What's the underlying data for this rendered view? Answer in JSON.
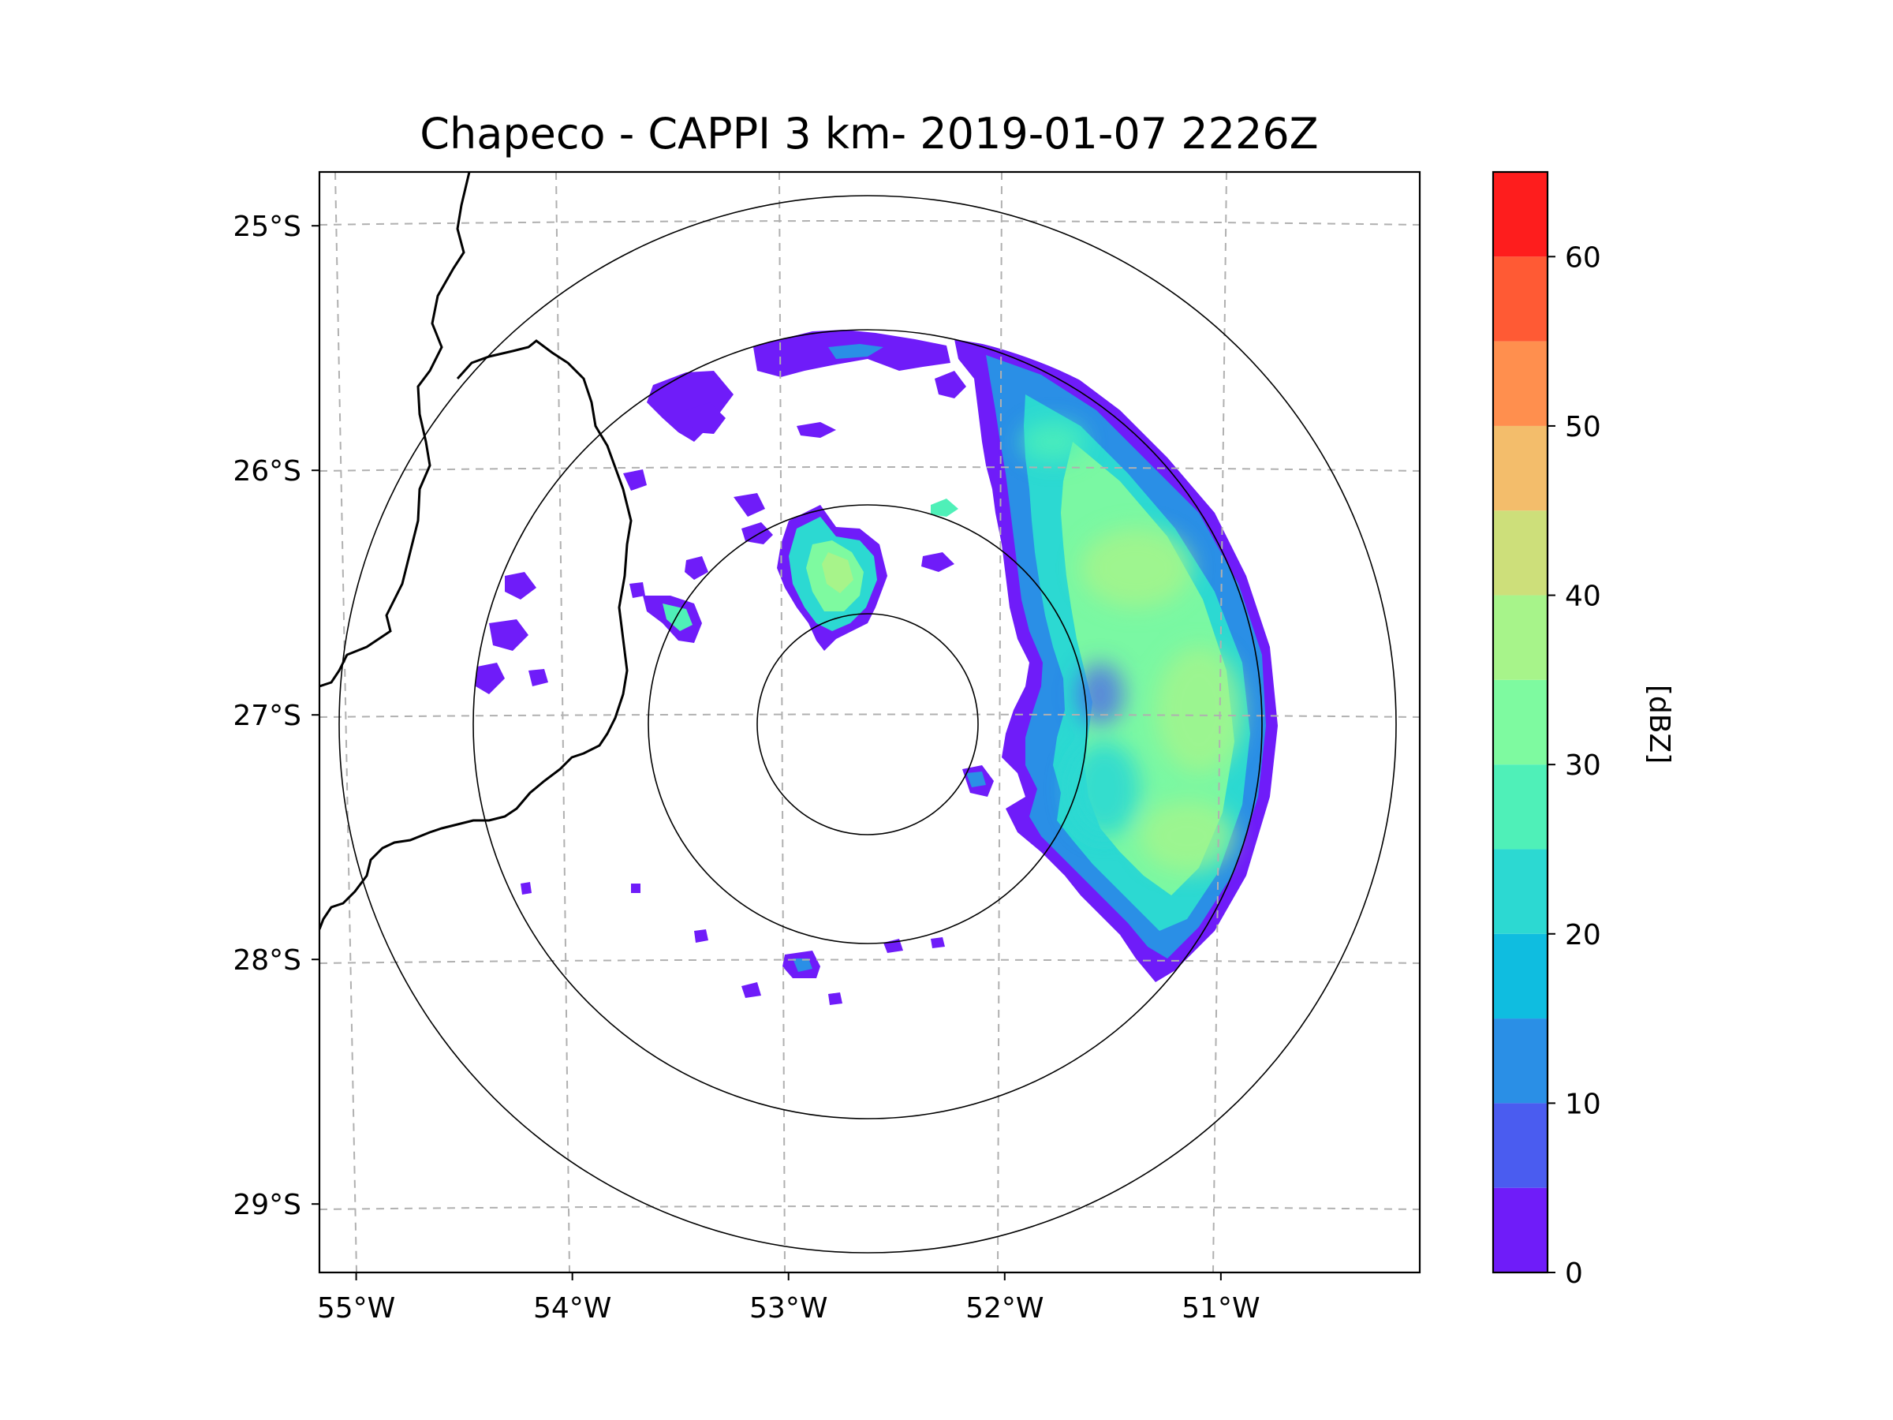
{
  "chart_data": {
    "type": "heatmap",
    "title": "Chapeco - CAPPI 3 km- 2019-01-07 2226Z",
    "map": {
      "projection": "azimuthal-equidistant",
      "radar_site": {
        "lon": -52.6,
        "lat": -27.03
      },
      "range_rings": [
        "ring-1",
        "ring-2",
        "ring-3",
        "ring-4"
      ],
      "gridlines": "dashed",
      "x_ticks": [
        {
          "value": -55,
          "label": "55°W"
        },
        {
          "value": -54,
          "label": "54°W"
        },
        {
          "value": -53,
          "label": "53°W"
        },
        {
          "value": -52,
          "label": "52°W"
        },
        {
          "value": -51,
          "label": "51°W"
        }
      ],
      "y_ticks": [
        {
          "value": -25,
          "label": "25°S"
        },
        {
          "value": -26,
          "label": "26°S"
        },
        {
          "value": -27,
          "label": "27°S"
        },
        {
          "value": -28,
          "label": "28°S"
        },
        {
          "value": -29,
          "label": "29°S"
        }
      ],
      "xlim": [
        -55.17,
        -50.08
      ],
      "ylim": [
        -29.28,
        -24.78
      ]
    },
    "colorbar": {
      "label": "[dBZ]",
      "range": [
        0,
        65
      ],
      "levels": [
        0,
        5,
        10,
        15,
        20,
        25,
        30,
        35,
        40,
        45,
        50,
        55,
        60,
        65
      ],
      "colors": [
        "#6f1cf9",
        "#4a5cf0",
        "#2a8fe6",
        "#0fbde0",
        "#2cd9d2",
        "#4ff0b8",
        "#7efaa0",
        "#a7f48a",
        "#cddf7a",
        "#f3bd6b",
        "#ff8f4e",
        "#ff5a34",
        "#fe1d1d"
      ],
      "ticks": [
        {
          "value": 0,
          "label": "0"
        },
        {
          "value": 10,
          "label": "10"
        },
        {
          "value": 20,
          "label": "20"
        },
        {
          "value": 30,
          "label": "30"
        },
        {
          "value": 40,
          "label": "40"
        },
        {
          "value": 50,
          "label": "50"
        },
        {
          "value": 60,
          "label": "60"
        }
      ]
    },
    "echo_regions": [
      {
        "name": "eastern-stratiform-band",
        "dbz_range": [
          0,
          40
        ]
      },
      {
        "name": "northern-edge-echoes",
        "dbz_range": [
          0,
          15
        ]
      },
      {
        "name": "central-convective-cell",
        "dbz_range": [
          0,
          35
        ]
      },
      {
        "name": "southern-scattered-echoes",
        "dbz_range": [
          0,
          20
        ]
      },
      {
        "name": "western-scattered-echoes",
        "dbz_range": [
          0,
          10
        ]
      }
    ]
  }
}
